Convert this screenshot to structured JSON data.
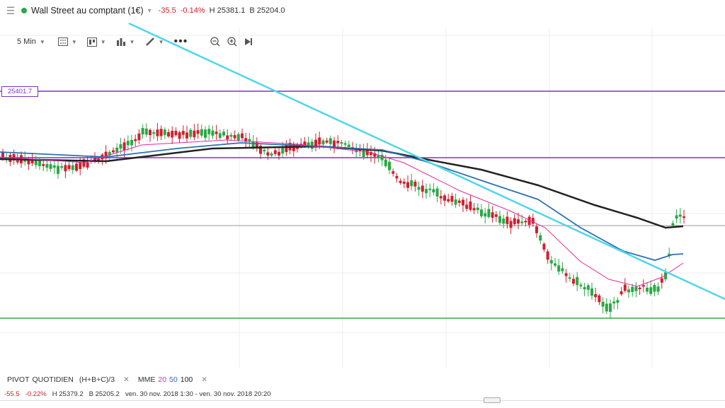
{
  "header": {
    "menu_icon": "hamburger-icon",
    "status_color": "#2aa845",
    "title": "Wall Street au comptant (1€)",
    "change": "-35.5",
    "change_pct": "-0.14%",
    "high": "H 25381.1",
    "low": "B 25204.0"
  },
  "toolbar": {
    "interval": "5 Min",
    "icons": [
      "grid-icon",
      "template-icon",
      "bar-chart-icon",
      "draw-pencil-icon",
      "more-icon",
      "zoom-out-icon",
      "zoom-in-icon",
      "scroll-to-end-icon"
    ]
  },
  "price_tag": "25401.7",
  "legend": {
    "pivot_label": "PIVOT",
    "pivot_type": "QUOTIDIEN",
    "pivot_formula": "(H+B+C)/3",
    "mme_label": "MME",
    "periods": [
      "20",
      "50",
      "100"
    ],
    "period_colors": [
      "#e02aa0",
      "#2f6fb0",
      "#222222"
    ]
  },
  "footer": {
    "change": "-55.5",
    "change_pct": "-0.22%",
    "high": "H 25379.2",
    "low": "B 25205.2",
    "range": "ven. 30 nov. 2018 1:30 - ven. 30 nov. 2018 20:20"
  },
  "colors": {
    "up": "#2aa845",
    "down": "#d0202e",
    "resistance": "#7a33cc",
    "support": "#3aa83a",
    "trendline": "#4fd6ec"
  },
  "chart_data": {
    "type": "candlestick",
    "symbol": "Wall Street au comptant (1€)",
    "interval": "5 Min",
    "levels": [
      25401.7
    ],
    "indicators": [
      "MME 20",
      "MME 50",
      "MME 100",
      "PIVOT QUOTIDIEN (H+B+C)/3"
    ]
  }
}
